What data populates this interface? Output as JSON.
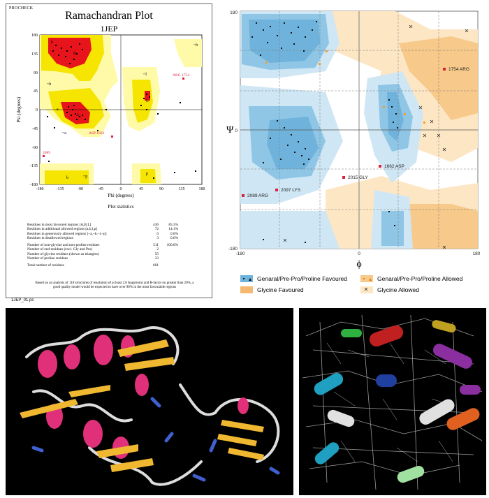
{
  "procheck": {
    "header": "PROCHECK",
    "title": "Ramachandran Plot",
    "subtitle": "1JEP",
    "x_label": "Phi (degrees)",
    "y_label": "Psi (degrees)",
    "x_ticks": [
      "-180",
      "-135",
      "-90",
      "-45",
      "0",
      "45",
      "90",
      "135",
      "180"
    ],
    "y_ticks": [
      "180",
      "135",
      "90",
      "45",
      "0",
      "-45",
      "-90",
      "-135",
      "-180"
    ],
    "region_labels": [
      "B",
      "b",
      "A",
      "a",
      "L",
      "l",
      "p",
      "~b",
      "~l",
      "~a",
      "~p",
      "b"
    ],
    "labeled_residues": [
      "ARG 1754",
      "ASP 1662",
      "2089"
    ],
    "stats_title": "Plot statistics",
    "stats": [
      {
        "label": "Residues in most favoured regions  [A,B,L]",
        "value": "436",
        "pct": "85.3%"
      },
      {
        "label": "Residues in additional allowed regions  [a,b,l,p]",
        "value": "72",
        "pct": "14.1%"
      },
      {
        "label": "Residues in generously allowed regions  [~a,~b,~l,~p]",
        "value": "0",
        "pct": "0.0%"
      },
      {
        "label": "Residues in disallowed regions",
        "value": "3",
        "pct": "0.6%"
      },
      {
        "label": "Number of non-glycine and non-proline residues",
        "value": "511",
        "pct": "100.0%"
      },
      {
        "label": "Number of end-residues (excl. Gly and Pro)",
        "value": "2",
        "pct": ""
      },
      {
        "label": "Number of glycine residues (shown as triangles)",
        "value": "55",
        "pct": ""
      },
      {
        "label": "Number of proline residues",
        "value": "33",
        "pct": ""
      },
      {
        "label": "Total number of residues",
        "value": "601",
        "pct": ""
      }
    ],
    "footnote": "Based on an analysis of 118 structures of resolution of at least 2.0 Angstroms and R-factor no greater than 20%, a good quality model would be expected to have over 90% in the most favourable regions",
    "filename": "1JEP_01.ps"
  },
  "rama2": {
    "x_label": "ϕ",
    "y_label": "Ψ",
    "x_ticks": [
      "-180",
      "0",
      "180"
    ],
    "y_ticks": [
      "180",
      "0",
      "-180"
    ],
    "outliers": [
      "1754 ARG",
      "1662 ASP",
      "2015 GLY",
      "2097 LYS",
      "2089 ARG"
    ],
    "legend": [
      {
        "label": "Genaral/Pre-Pro/Proline Favoured",
        "color": "#8fc6e6"
      },
      {
        "label": "Genaral/Pre-Pro/Proline Allowed",
        "color": "#f7c98a"
      },
      {
        "label": "Glycine Favoured",
        "color": "#f5b870"
      },
      {
        "label": "Glycine Allowed",
        "color": "#fde6c4"
      }
    ],
    "colors": {
      "favoured": "#6fb3dc",
      "allowed_blue": "#cfe6f4",
      "gly_favoured": "#f5b870",
      "gly_allowed": "#fbe2bd",
      "outlier": "#d9233c",
      "glycine": "#f0a030"
    }
  },
  "structures": {
    "left_caption": "",
    "right_caption": ""
  }
}
